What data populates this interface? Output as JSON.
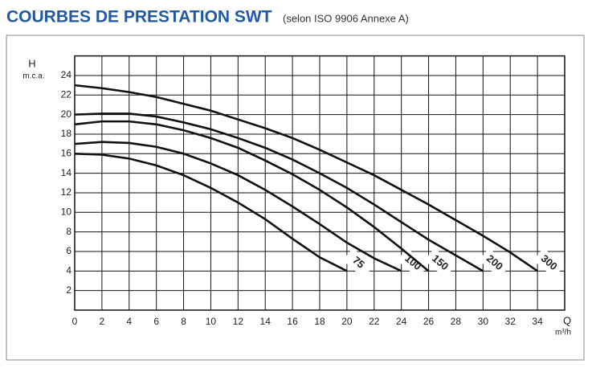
{
  "chart_data": {
    "type": "line",
    "title": "COURBES DE PRESTATION SWT",
    "subtitle": "(selon ISO 9906 Annexe A)",
    "y_label": "H",
    "y_unit": "m.c.a.",
    "x_label": "Q",
    "x_unit": "m³/h",
    "x": [
      0,
      2,
      4,
      6,
      8,
      10,
      12,
      14,
      16,
      18,
      20,
      22,
      24,
      26,
      28,
      30,
      32,
      34
    ],
    "series": [
      {
        "name": "75",
        "color": "#111111",
        "values": [
          16,
          15.9,
          15.5,
          14.8,
          13.8,
          12.5,
          11,
          9.3,
          7.3,
          5.4,
          4,
          null,
          null,
          null,
          null,
          null,
          null,
          null
        ]
      },
      {
        "name": "100",
        "color": "#111111",
        "values": [
          17,
          17.2,
          17.1,
          16.7,
          16,
          15,
          13.8,
          12.3,
          10.6,
          8.8,
          6.9,
          5.3,
          4,
          null,
          null,
          null,
          null,
          null
        ]
      },
      {
        "name": "150",
        "color": "#111111",
        "values": [
          19,
          19.3,
          19.3,
          19,
          18.4,
          17.6,
          16.6,
          15.3,
          13.9,
          12.3,
          10.5,
          8.5,
          6.3,
          4,
          null,
          null,
          null,
          null
        ]
      },
      {
        "name": "200",
        "color": "#111111",
        "values": [
          20,
          20.1,
          20.1,
          19.8,
          19.2,
          18.5,
          17.6,
          16.6,
          15.4,
          14,
          12.5,
          10.8,
          9,
          7.2,
          5.6,
          4,
          null,
          null
        ]
      },
      {
        "name": "300",
        "color": "#111111",
        "values": [
          23,
          22.7,
          22.3,
          21.8,
          21.1,
          20.4,
          19.5,
          18.6,
          17.6,
          16.4,
          15.1,
          13.8,
          12.3,
          10.8,
          9.2,
          7.6,
          5.9,
          4
        ]
      }
    ],
    "xlim": [
      0,
      36
    ],
    "ylim": [
      0,
      26
    ],
    "xticks": [
      0,
      2,
      4,
      6,
      8,
      10,
      12,
      14,
      16,
      18,
      20,
      22,
      24,
      26,
      28,
      30,
      32,
      34
    ],
    "yticks": [
      2,
      4,
      6,
      8,
      10,
      12,
      14,
      16,
      18,
      20,
      22,
      24
    ],
    "grid": true
  }
}
